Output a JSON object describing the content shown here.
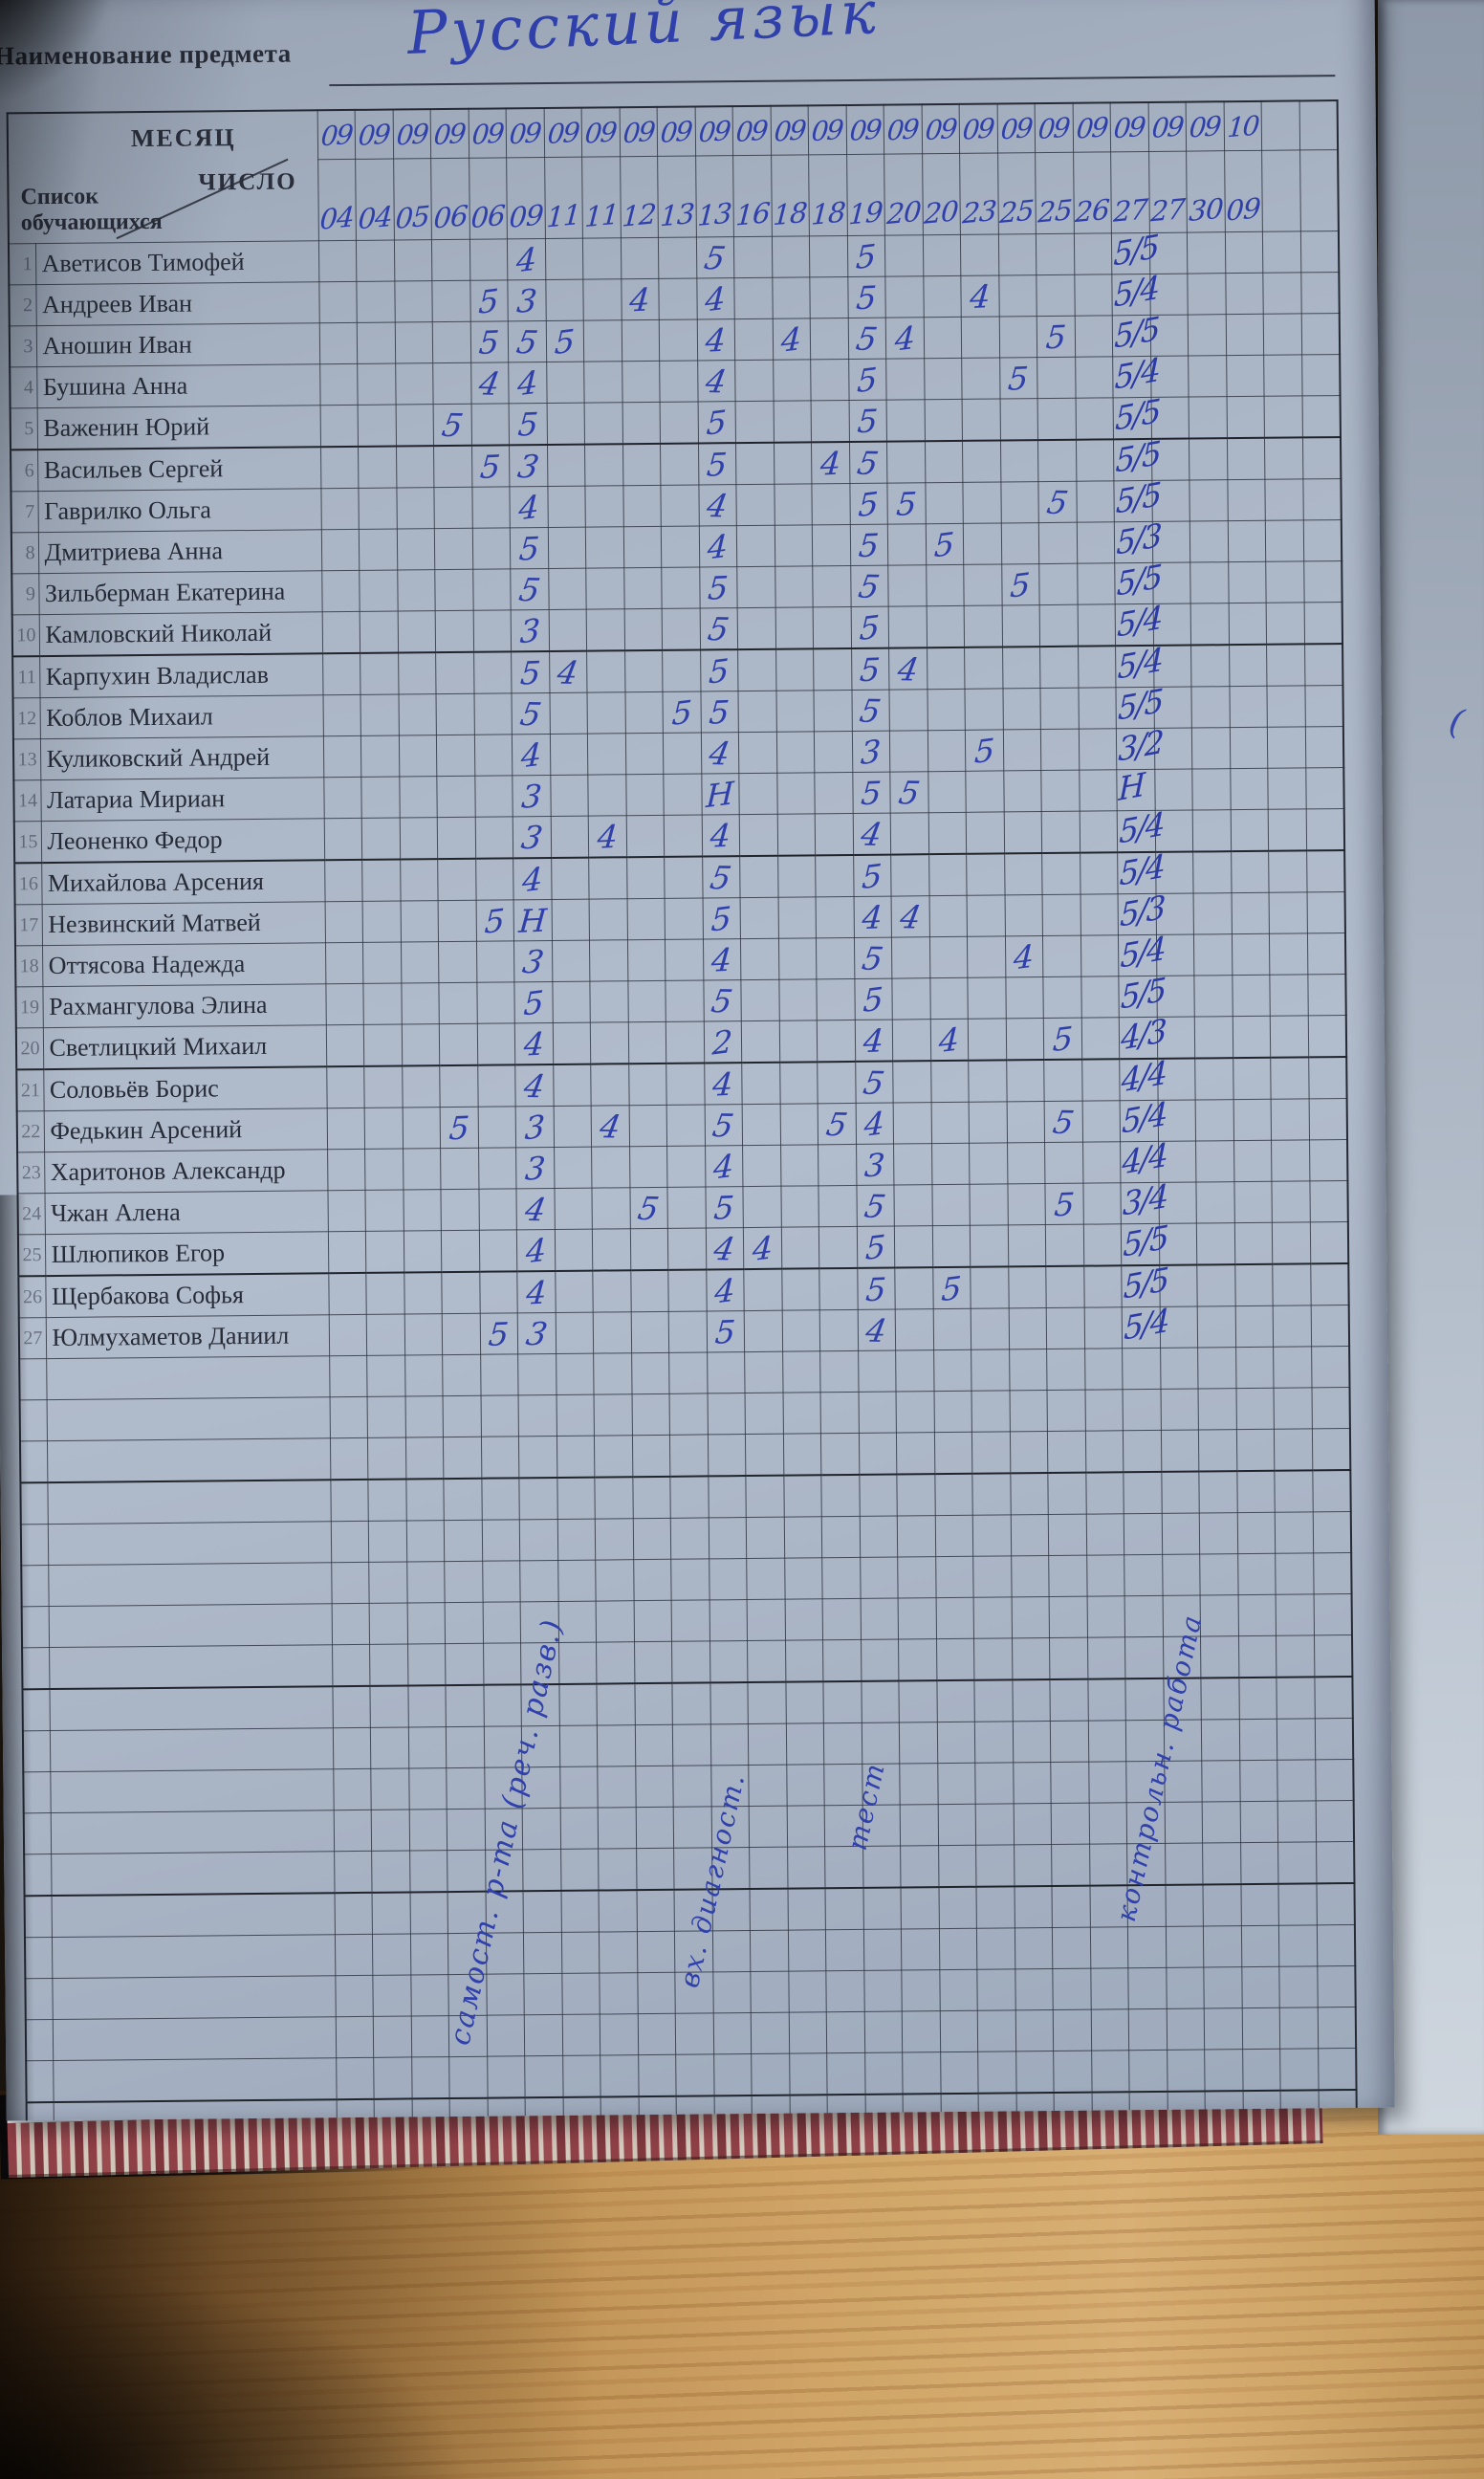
{
  "header": {
    "subject_label": "Наименование предмета",
    "subject_value": "Русский язык"
  },
  "table": {
    "month_label": "МЕСЯЦ",
    "day_label": "ЧИСЛО",
    "students_label": "Список обучающихся",
    "months": [
      "09",
      "09",
      "09",
      "09",
      "09",
      "09",
      "09",
      "09",
      "09",
      "09",
      "09",
      "09",
      "09",
      "09",
      "09",
      "09",
      "09",
      "09",
      "09",
      "09",
      "09",
      "09",
      "09",
      "09",
      "10"
    ],
    "days": [
      "04",
      "04",
      "05",
      "06",
      "06",
      "09",
      "11",
      "11",
      "12",
      "13",
      "13",
      "16",
      "18",
      "18",
      "19",
      "20",
      "20",
      "23",
      "25",
      "25",
      "26",
      "27",
      "27",
      "30",
      "09"
    ],
    "students": [
      {
        "num": 1,
        "name": "Аветисов Тимофей",
        "grades": {
          "6": "4",
          "11": "5",
          "15": "5"
        },
        "final": "5/5"
      },
      {
        "num": 2,
        "name": "Андреев Иван",
        "grades": {
          "5": "5",
          "6": "3",
          "9": "4",
          "11": "4",
          "15": "5",
          "18": "4"
        },
        "final": "5/4"
      },
      {
        "num": 3,
        "name": "Аношин Иван",
        "grades": {
          "5": "5",
          "6": "5",
          "7": "5",
          "11": "4",
          "13": "4",
          "15": "5",
          "16": "4",
          "20": "5"
        },
        "final": "5/5"
      },
      {
        "num": 4,
        "name": "Бушина Анна",
        "grades": {
          "5": "4",
          "6": "4",
          "11": "4",
          "15": "5",
          "19": "5"
        },
        "final": "5/4"
      },
      {
        "num": 5,
        "name": "Важенин Юрий",
        "grades": {
          "4": "5",
          "6": "5",
          "11": "5",
          "15": "5"
        },
        "final": "5/5"
      },
      {
        "num": 6,
        "name": "Васильев Сергей",
        "grades": {
          "5": "5",
          "6": "3",
          "11": "5",
          "14": "4",
          "15": "5"
        },
        "final": "5/5"
      },
      {
        "num": 7,
        "name": "Гаврилко Ольга",
        "grades": {
          "6": "4",
          "11": "4",
          "15": "5",
          "16": "5",
          "20": "5"
        },
        "final": "5/5"
      },
      {
        "num": 8,
        "name": "Дмитриева Анна",
        "grades": {
          "6": "5",
          "11": "4",
          "15": "5",
          "17": "5"
        },
        "final": "5/3"
      },
      {
        "num": 9,
        "name": "Зильберман Екатерина",
        "grades": {
          "6": "5",
          "11": "5",
          "15": "5",
          "19": "5"
        },
        "final": "5/5"
      },
      {
        "num": 10,
        "name": "Камловский Николай",
        "grades": {
          "6": "3",
          "11": "5",
          "15": "5"
        },
        "final": "5/4"
      },
      {
        "num": 11,
        "name": "Карпухин Владислав",
        "grades": {
          "6": "5",
          "7": "4",
          "11": "5",
          "15": "5",
          "16": "4"
        },
        "final": "5/4"
      },
      {
        "num": 12,
        "name": "Коблов Михаил",
        "grades": {
          "6": "5",
          "10": "5",
          "11": "5",
          "15": "5"
        },
        "final": "5/5"
      },
      {
        "num": 13,
        "name": "Куликовский Андрей",
        "grades": {
          "6": "4",
          "11": "4",
          "15": "3",
          "18": "5"
        },
        "final": "3/2"
      },
      {
        "num": 14,
        "name": "Латариа Мириан",
        "grades": {
          "6": "3",
          "11": "Н",
          "15": "5",
          "16": "5"
        },
        "final": "Н"
      },
      {
        "num": 15,
        "name": "Леоненко Федор",
        "grades": {
          "6": "3",
          "8": "4",
          "11": "4",
          "15": "4"
        },
        "final": "5/4"
      },
      {
        "num": 16,
        "name": "Михайлова Арсения",
        "grades": {
          "6": "4",
          "11": "5",
          "15": "5"
        },
        "final": "5/4"
      },
      {
        "num": 17,
        "name": "Незвинский Матвей",
        "grades": {
          "5": "5",
          "6": "Н",
          "11": "5",
          "15": "4",
          "16": "4"
        },
        "final": "5/3"
      },
      {
        "num": 18,
        "name": "Оттясова Надежда",
        "grades": {
          "6": "3",
          "11": "4",
          "15": "5",
          "19": "4"
        },
        "final": "5/4"
      },
      {
        "num": 19,
        "name": "Рахмангулова Элина",
        "grades": {
          "6": "5",
          "11": "5",
          "15": "5"
        },
        "final": "5/5"
      },
      {
        "num": 20,
        "name": "Светлицкий Михаил",
        "grades": {
          "6": "4",
          "11": "2",
          "15": "4",
          "17": "4",
          "20": "5"
        },
        "final": "4/3"
      },
      {
        "num": 21,
        "name": "Соловьёв Борис",
        "grades": {
          "6": "4",
          "11": "4",
          "15": "5"
        },
        "final": "4/4"
      },
      {
        "num": 22,
        "name": "Федькин Арсений",
        "grades": {
          "4": "5",
          "6": "3",
          "8": "4",
          "11": "5",
          "14": "5",
          "15": "4",
          "20": "5"
        },
        "final": "5/4"
      },
      {
        "num": 23,
        "name": "Харитонов Александр",
        "grades": {
          "6": "3",
          "11": "4",
          "15": "3"
        },
        "final": "4/4"
      },
      {
        "num": 24,
        "name": "Чжан Алена",
        "grades": {
          "6": "4",
          "9": "5",
          "11": "5",
          "15": "5",
          "20": "5"
        },
        "final": "3/4"
      },
      {
        "num": 25,
        "name": "Шлюпиков Егор",
        "grades": {
          "6": "4",
          "11": "4",
          "12": "4",
          "15": "5"
        },
        "final": "5/5"
      },
      {
        "num": 26,
        "name": "Щербакова Софья",
        "grades": {
          "6": "4",
          "11": "4",
          "15": "5",
          "17": "5"
        },
        "final": "5/5"
      },
      {
        "num": 27,
        "name": "Юлмухаметов Даниил",
        "grades": {
          "5": "5",
          "6": "3",
          "11": "5",
          "15": "4"
        },
        "final": "5/4"
      }
    ]
  },
  "annotations": {
    "notes": [
      {
        "text": "самост. р-та (реч. разв.)"
      },
      {
        "text": "вх. диагност."
      },
      {
        "text": "тест"
      },
      {
        "text": "контрольн. работа"
      }
    ],
    "stray_mark": "("
  }
}
